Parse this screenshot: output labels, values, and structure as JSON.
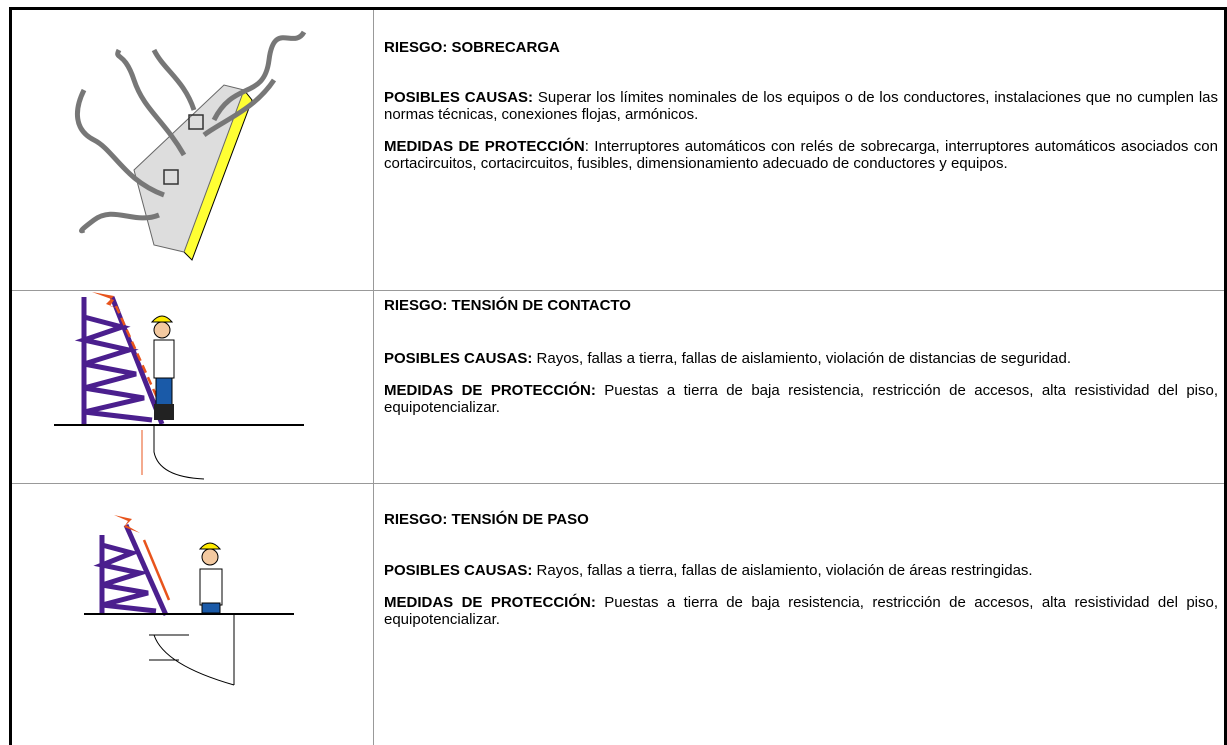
{
  "rows": [
    {
      "title": "RIESGO:  SOBRECARGA",
      "causes_label": "POSIBLES CAUSAS:",
      "causes_text": " Superar los límites nominales de los equipos o de los conductores, instalaciones que no cumplen las normas técnicas, conexiones flojas, armónicos.",
      "measures_label": "MEDIDAS DE PROTECCIÓN",
      "measures_text": ": Interruptores automáticos con relés de sobrecarga, interruptores automáticos asociados con cortacircuitos, cortacircuitos, fusibles, dimensionamiento adecuado de conductores y equipos."
    },
    {
      "title": "RIESGO:  TENSIÓN DE CONTACTO",
      "causes_label": "POSIBLES CAUSAS:",
      "causes_text": " Rayos, fallas a tierra, fallas de aislamiento, violación de distancias de seguridad.",
      "measures_label": "MEDIDAS DE PROTECCIÓN:",
      "measures_text": " Puestas a tierra de baja resistencia, restricción de accesos, alta resistividad del piso, equipotencializar."
    },
    {
      "title": "RIESGO:  TENSIÓN DE PASO",
      "causes_label": "POSIBLES CAUSAS:",
      "causes_text": " Rayos, fallas a tierra, fallas de aislamiento, violación de áreas restringidas.",
      "measures_label": "MEDIDAS DE PROTECCIÓN:",
      "measures_text": " Puestas a tierra de baja resistencia, restricción de accesos, alta resistividad del piso, equipotencializar."
    }
  ]
}
